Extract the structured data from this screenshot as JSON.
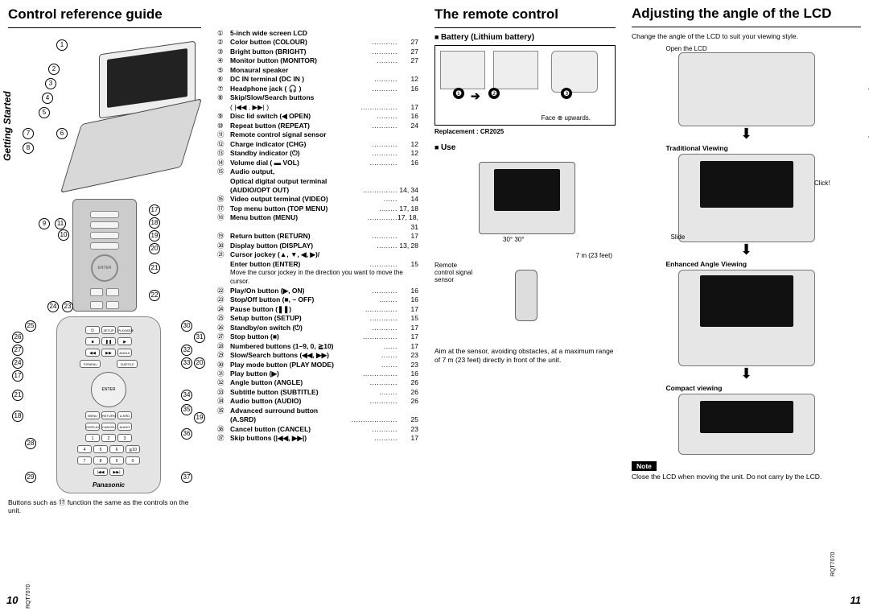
{
  "doc_code": "RQT7070",
  "page_left": "10",
  "page_right": "11",
  "side_label": "Getting Started",
  "sections": {
    "guide": {
      "title": "Control reference guide"
    },
    "remote": {
      "title": "The remote control"
    },
    "angle": {
      "title": "Adjusting the angle of the LCD"
    }
  },
  "footnote_left": "Buttons such as ⑰ function the same as the controls on the unit.",
  "remote_brand": "Panasonic",
  "ref_items": [
    {
      "n": "①",
      "label": "5-inch wide screen LCD",
      "pg": ""
    },
    {
      "n": "②",
      "label": "Color button (COLOUR)",
      "pg": "27"
    },
    {
      "n": "③",
      "label": "Bright button (BRIGHT)",
      "pg": "27"
    },
    {
      "n": "④",
      "label": "Monitor button (MONITOR)",
      "pg": "27"
    },
    {
      "n": "⑤",
      "label": "Monaural speaker",
      "pg": ""
    },
    {
      "n": "⑥",
      "label": "DC IN terminal (DC IN )",
      "pg": "12"
    },
    {
      "n": "⑦",
      "label": "Headphone jack ( 🎧 )",
      "pg": "16"
    },
    {
      "n": "⑧",
      "label": "Skip/Slow/Search buttons",
      "pg": ""
    },
    {
      "n": "",
      "label": "( |◀◀ , ▶▶| )",
      "pg": "17",
      "light": true
    },
    {
      "n": "⑨",
      "label": "Disc lid switch (◀ OPEN)",
      "pg": "16"
    },
    {
      "n": "⑩",
      "label": "Repeat button (REPEAT)",
      "pg": "24"
    },
    {
      "n": "⑪",
      "label": "Remote control signal sensor",
      "pg": ""
    },
    {
      "n": "⑫",
      "label": "Charge indicator (CHG)",
      "pg": "12"
    },
    {
      "n": "⑬",
      "label": "Standby indicator (⏻)",
      "pg": "12"
    },
    {
      "n": "⑭",
      "label": "Volume dial ( ▬ VOL)",
      "pg": "16"
    },
    {
      "n": "⑮",
      "label": "Audio output,",
      "pg": ""
    },
    {
      "n": "",
      "label": "Optical digital output terminal",
      "pg": "",
      "bold": true
    },
    {
      "n": "",
      "label": "(AUDIO/OPT OUT)",
      "pg": "14, 34",
      "bold": true
    },
    {
      "n": "⑯",
      "label": "Video output terminal (VIDEO)",
      "pg": "14"
    },
    {
      "n": "⑰",
      "label": "Top menu button (TOP MENU)",
      "pg": "17, 18"
    },
    {
      "n": "⑱",
      "label": "Menu button (MENU)",
      "pg": "17, 18, 31"
    },
    {
      "n": "⑲",
      "label": "Return button (RETURN)",
      "pg": "17"
    },
    {
      "n": "⑳",
      "label": "Display button (DISPLAY)",
      "pg": "13, 28"
    },
    {
      "n": "㉑",
      "label": "Cursor jockey (▲, ▼, ◀, ▶)/",
      "pg": ""
    },
    {
      "n": "",
      "label": "Enter button (ENTER)",
      "pg": "15",
      "bold": true
    },
    {
      "n": "",
      "label": "Move the cursor jockey in the direction you want to move the cursor.",
      "pg": "",
      "light": true,
      "sub": true
    },
    {
      "n": "㉒",
      "label": "Play/On button (▶, ON)",
      "pg": "16"
    },
    {
      "n": "㉓",
      "label": "Stop/Off button (■, – OFF)",
      "pg": "16"
    },
    {
      "n": "㉔",
      "label": "Pause button (❚❚)",
      "pg": "17"
    },
    {
      "n": "㉕",
      "label": "Setup button (SETUP)",
      "pg": "15"
    },
    {
      "n": "㉖",
      "label": "Standby/on switch (⏻)",
      "pg": "17"
    },
    {
      "n": "㉗",
      "label": "Stop button (■)",
      "pg": "17"
    },
    {
      "n": "㉘",
      "label": "Numbered buttons (1–9, 0, ≧10)",
      "pg": "17"
    },
    {
      "n": "㉙",
      "label": "Slow/Search buttons (◀◀, ▶▶)",
      "pg": "23"
    },
    {
      "n": "㉚",
      "label": "Play mode button (PLAY MODE)",
      "pg": "23"
    },
    {
      "n": "㉛",
      "label": "Play button (▶)",
      "pg": "16"
    },
    {
      "n": "㉜",
      "label": "Angle button (ANGLE)",
      "pg": "26"
    },
    {
      "n": "㉝",
      "label": "Subtitle button (SUBTITLE)",
      "pg": "26"
    },
    {
      "n": "㉞",
      "label": "Audio button (AUDIO)",
      "pg": "26"
    },
    {
      "n": "㉟",
      "label": "Advanced surround button",
      "pg": ""
    },
    {
      "n": "",
      "label": "(A.SRD)",
      "pg": "25",
      "bold": true
    },
    {
      "n": "㊱",
      "label": "Cancel button (CANCEL)",
      "pg": "23"
    },
    {
      "n": "㊲",
      "label": "Skip buttons (|◀◀, ▶▶|)",
      "pg": "17"
    }
  ],
  "battery": {
    "heading": "Battery (Lithium battery)",
    "replacement": "Replacement : CR2025",
    "faceup": "Face ⊕ upwards.",
    "steps": [
      "❶",
      "❷",
      "❸"
    ]
  },
  "use": {
    "heading": "Use",
    "sensor_label": "Remote control signal sensor",
    "angle": "30° 30°",
    "distance": "7 m (23 feet)",
    "aim_text": "Aim at the sensor, avoiding obstacles, at a maximum range of 7 m (23 feet) directly in front of the unit."
  },
  "angle": {
    "intro": "Change the angle of the LCD to suit your viewing style.",
    "open": "Open the LCD",
    "trad": "Traditional Viewing",
    "click": "Click!",
    "slide": "Slide",
    "enhanced": "Enhanced Angle Viewing",
    "compact": "Compact viewing",
    "note_label": "Note",
    "note_text": "Close the LCD when moving the unit. Do not carry by the LCD."
  }
}
